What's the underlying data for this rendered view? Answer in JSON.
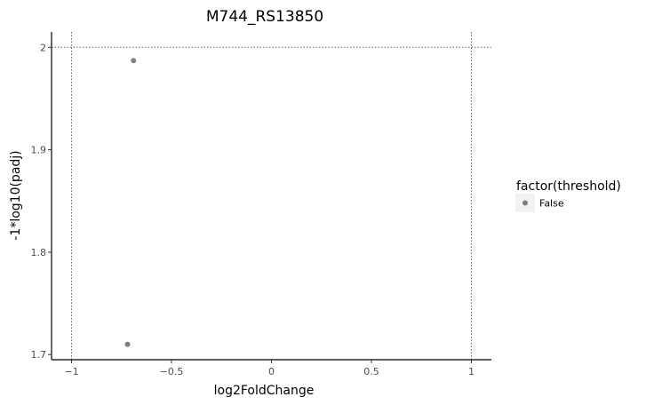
{
  "chart_data": {
    "type": "scatter",
    "title": "M744_RS13850",
    "xlabel": "log2FoldChange",
    "ylabel": "-1*log10(padj)",
    "xlim": [
      -1.1,
      1.1
    ],
    "ylim": [
      1.695,
      2.015
    ],
    "x_ticks": [
      -1,
      -0.5,
      0,
      0.5,
      1
    ],
    "x_tick_labels": [
      "−1",
      "−0.5",
      "0",
      "0.5",
      "1"
    ],
    "y_ticks": [
      1.7,
      1.8,
      1.9,
      2
    ],
    "y_tick_labels": [
      "1.7",
      "1.8",
      "1.9",
      "2"
    ],
    "reference_lines": {
      "vertical": [
        -1,
        1
      ],
      "horizontal": [
        2
      ]
    },
    "grid": false,
    "legend": {
      "title": "factor(threshold)",
      "placement": "right",
      "entries": [
        {
          "label": "False",
          "color": "#7f7f7f"
        }
      ]
    },
    "series": [
      {
        "color": "#7f7f7f",
        "points": [
          {
            "x": -0.69,
            "y": 1.987
          },
          {
            "x": -0.72,
            "y": 1.71
          }
        ]
      }
    ]
  }
}
